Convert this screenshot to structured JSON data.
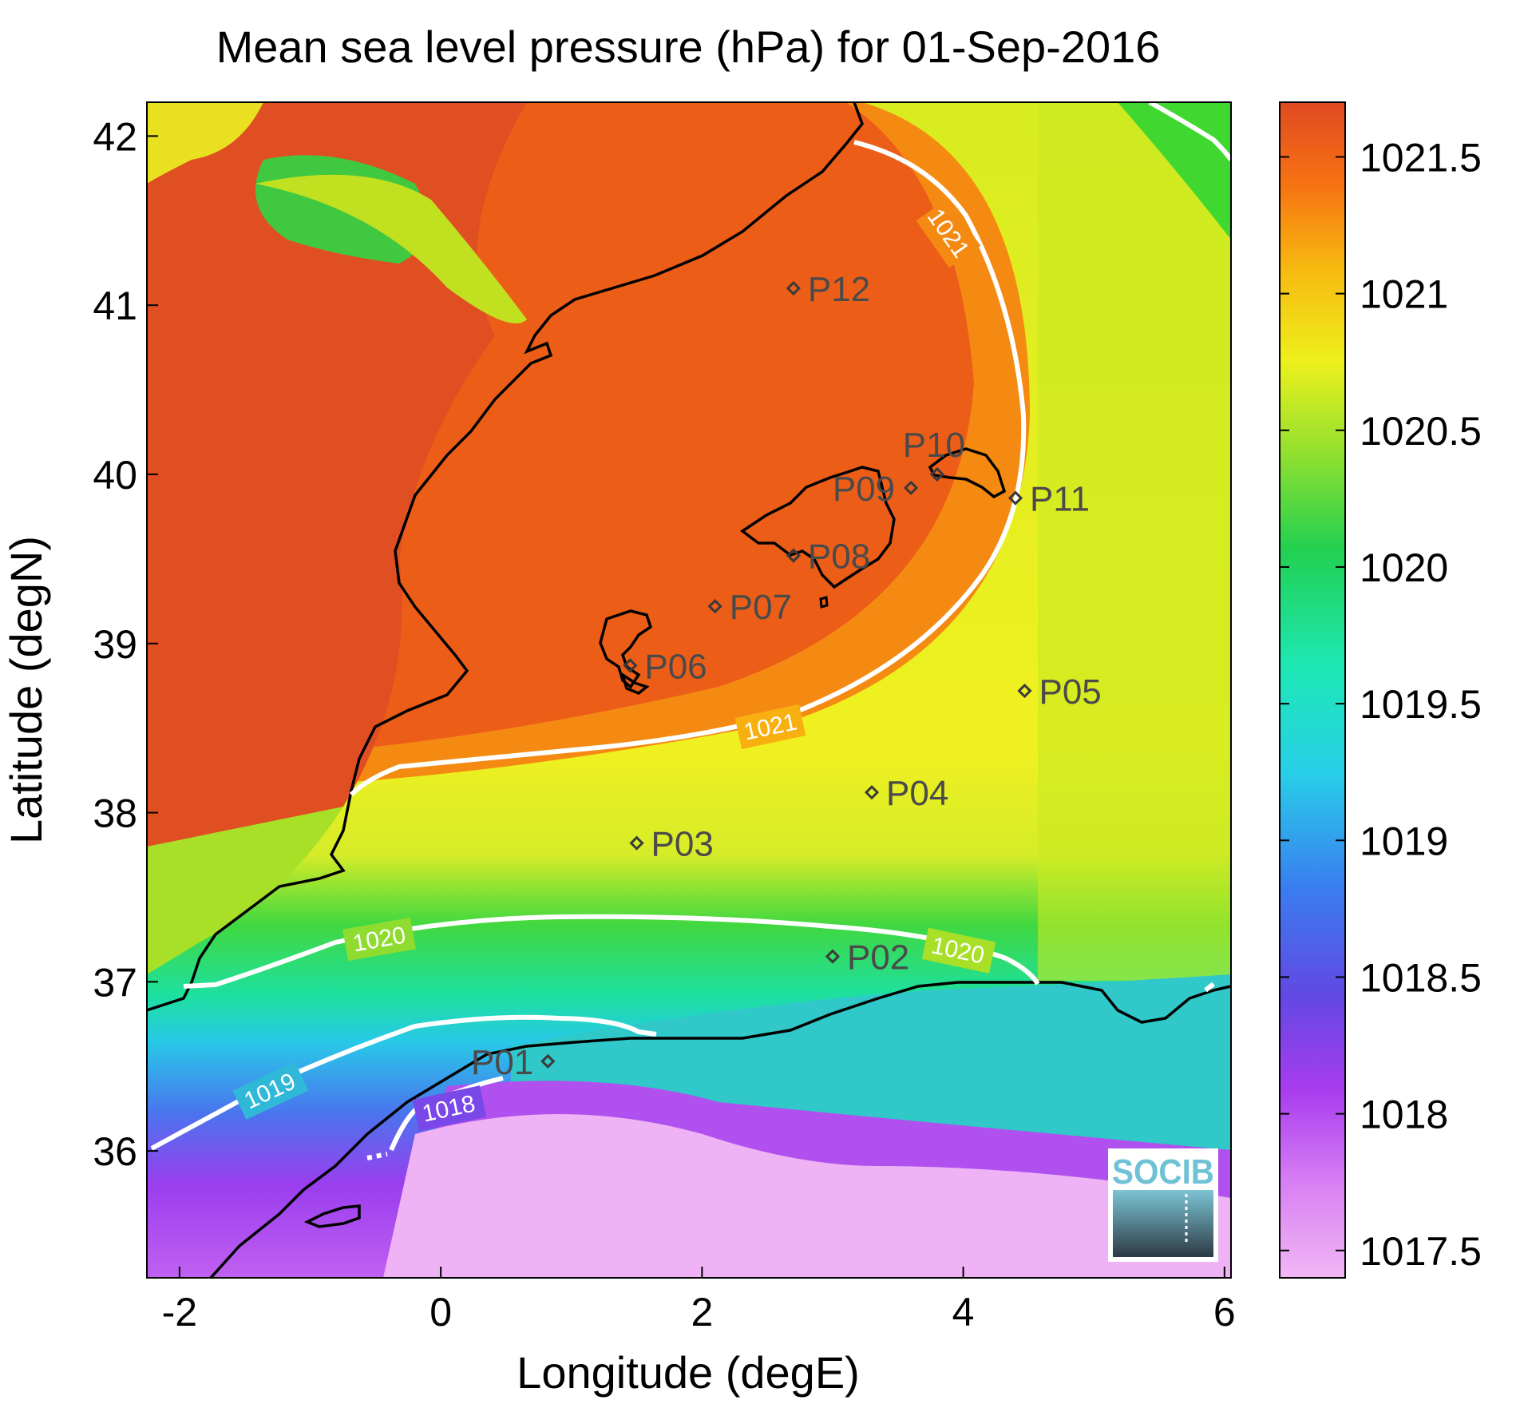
{
  "title": "Mean sea level pressure (hPa) for 01-Sep-2016",
  "xlabel": "Longitude (degE)",
  "ylabel": "Latitude (degN)",
  "x_ticks": [
    "-2",
    "0",
    "2",
    "4",
    "6"
  ],
  "y_ticks": [
    "36",
    "37",
    "38",
    "39",
    "40",
    "41",
    "42"
  ],
  "colorbar": {
    "ticks": [
      "1017.5",
      "1018",
      "1018.5",
      "1019",
      "1019.5",
      "1020",
      "1020.5",
      "1021",
      "1021.5"
    ],
    "range": [
      1017.4,
      1021.7
    ],
    "colors": [
      "#f2b7f5",
      "#b83bf0",
      "#5c4fe0",
      "#3a8ff0",
      "#1fe8d8",
      "#1cd07a",
      "#20cf3c",
      "#e5f020",
      "#f5c010",
      "#f57010",
      "#e14f22"
    ]
  },
  "map_extent": {
    "lon": [
      -2.25,
      6.05
    ],
    "lat": [
      35.25,
      42.2
    ]
  },
  "contours": [
    {
      "label": "1021"
    },
    {
      "label": "1020"
    },
    {
      "label": "1019"
    },
    {
      "label": "1018"
    }
  ],
  "stations": [
    {
      "name": "P01",
      "lon": 0.82,
      "lat": 36.53
    },
    {
      "name": "P02",
      "lon": 3.0,
      "lat": 37.15
    },
    {
      "name": "P03",
      "lon": 1.5,
      "lat": 37.82
    },
    {
      "name": "P04",
      "lon": 3.3,
      "lat": 38.12
    },
    {
      "name": "P05",
      "lon": 4.47,
      "lat": 38.72
    },
    {
      "name": "P06",
      "lon": 1.45,
      "lat": 38.87
    },
    {
      "name": "P07",
      "lon": 2.1,
      "lat": 39.22
    },
    {
      "name": "P08",
      "lon": 2.7,
      "lat": 39.52
    },
    {
      "name": "P09",
      "lon": 3.6,
      "lat": 39.92
    },
    {
      "name": "P10",
      "lon": 3.8,
      "lat": 40.0
    },
    {
      "name": "P11",
      "lon": 4.4,
      "lat": 39.86
    },
    {
      "name": "P12",
      "lon": 2.7,
      "lat": 41.1
    }
  ],
  "logo": {
    "text": "SOCIB"
  }
}
